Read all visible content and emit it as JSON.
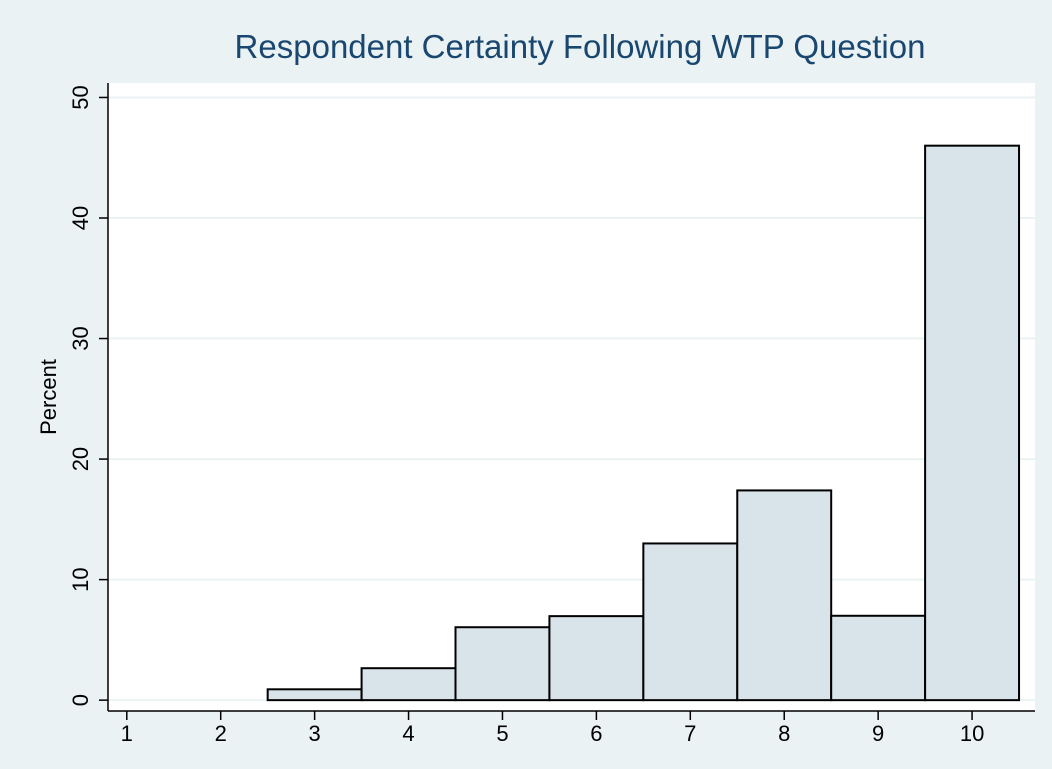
{
  "chart_data": {
    "type": "histogram",
    "title": "Respondent Certainty Following WTP Question",
    "ylabel": "Percent",
    "bins": [
      2.5,
      3.5,
      4.5,
      5.5,
      6.5,
      7.5,
      8.5,
      9.5,
      10.5
    ],
    "counts": [
      0.9,
      2.65,
      6.05,
      6.97,
      13.0,
      17.4,
      7.0,
      46.0
    ],
    "color": "#d9e4ea",
    "xlim": [
      0.8,
      10.67
    ],
    "xticks": [
      1,
      2,
      3,
      4,
      5,
      6,
      7,
      8,
      9,
      10
    ],
    "ylim": [
      -0.9,
      51.2
    ],
    "yticks": [
      0,
      10,
      20,
      30,
      40,
      50
    ],
    "grid": true
  }
}
